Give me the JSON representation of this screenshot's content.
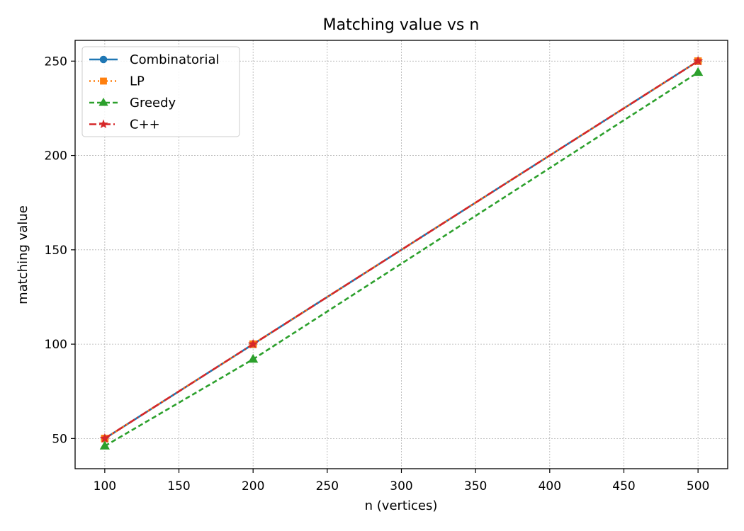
{
  "chart_data": {
    "type": "line",
    "title": "Matching value vs n",
    "xlabel": "n (vertices)",
    "ylabel": "matching value",
    "x": [
      100,
      200,
      500
    ],
    "xlim": [
      80,
      520
    ],
    "ylim": [
      34,
      261
    ],
    "xticks": [
      100,
      150,
      200,
      250,
      300,
      350,
      400,
      450,
      500
    ],
    "yticks": [
      50,
      100,
      150,
      200,
      250
    ],
    "grid": true,
    "legend_position": "top-left",
    "series": [
      {
        "name": "Combinatorial",
        "values": [
          50,
          100,
          250
        ],
        "color": "#1f77b4",
        "line_style": "solid",
        "marker": "circle"
      },
      {
        "name": "LP",
        "values": [
          50,
          100,
          250
        ],
        "color": "#ff7f0e",
        "line_style": "dotted",
        "marker": "square"
      },
      {
        "name": "Greedy",
        "values": [
          46,
          92,
          244
        ],
        "color": "#2ca02c",
        "line_style": "dashed",
        "marker": "triangle"
      },
      {
        "name": "C++",
        "values": [
          50,
          100,
          250
        ],
        "color": "#d62728",
        "line_style": "dashdot",
        "marker": "star"
      }
    ]
  }
}
